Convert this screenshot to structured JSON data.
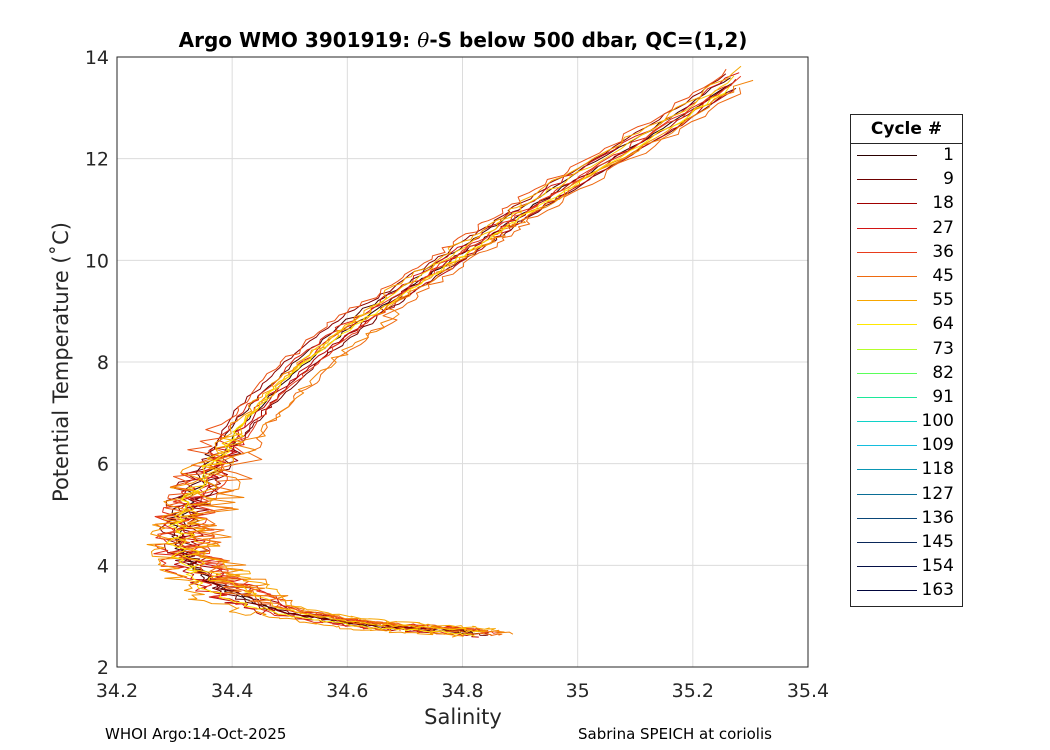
{
  "chart_data": {
    "type": "line",
    "title_parts": [
      "Argo WMO 3901919: ",
      "θ",
      "-S below 500 dbar,  QC=(1,2)"
    ],
    "xlabel": "Salinity",
    "ylabel": "Potential Temperature (˚C)",
    "xlim": [
      34.2,
      35.4
    ],
    "ylim": [
      2,
      14
    ],
    "x_ticks": [
      "34.2",
      "34.4",
      "34.6",
      "34.8",
      "35",
      "35.2",
      "35.4"
    ],
    "y_ticks": [
      "2",
      "4",
      "6",
      "8",
      "10",
      "12",
      "14"
    ],
    "grid": true,
    "legend_placement": "outside-right",
    "legend": {
      "title": "Cycle #",
      "entries": [
        {
          "label": "1",
          "color": "#2a0000"
        },
        {
          "label": "9",
          "color": "#6e0000"
        },
        {
          "label": "18",
          "color": "#a00000"
        },
        {
          "label": "27",
          "color": "#d21414"
        },
        {
          "label": "36",
          "color": "#e83c1c"
        },
        {
          "label": "45",
          "color": "#ee6a10"
        },
        {
          "label": "55",
          "color": "#f7a600"
        },
        {
          "label": "64",
          "color": "#ffe800"
        },
        {
          "label": "73",
          "color": "#b4ff2a"
        },
        {
          "label": "82",
          "color": "#5aff5a"
        },
        {
          "label": "91",
          "color": "#1ce89a"
        },
        {
          "label": "100",
          "color": "#10d2c8"
        },
        {
          "label": "109",
          "color": "#14bede"
        },
        {
          "label": "118",
          "color": "#0a96b4"
        },
        {
          "label": "127",
          "color": "#0a6e96"
        },
        {
          "label": "136",
          "color": "#0a4678"
        },
        {
          "label": "145",
          "color": "#0a285a"
        },
        {
          "label": "154",
          "color": "#050f46"
        },
        {
          "label": "163",
          "color": "#00053c"
        }
      ]
    },
    "base_profile": {
      "x": [
        35.27,
        35.15,
        35.0,
        34.9,
        34.85,
        34.78,
        34.7,
        34.62,
        34.55,
        34.48,
        34.42,
        34.37,
        34.33,
        34.31,
        34.31,
        34.33,
        34.37,
        34.43,
        34.5,
        34.58,
        34.65,
        34.72,
        34.79,
        34.83
      ],
      "y": [
        13.5,
        12.6,
        11.6,
        10.9,
        10.5,
        10.0,
        9.4,
        8.8,
        8.2,
        7.5,
        6.8,
        6.0,
        5.3,
        4.8,
        4.4,
        4.0,
        3.6,
        3.3,
        3.05,
        2.9,
        2.8,
        2.75,
        2.7,
        2.65
      ]
    },
    "profiles": [
      {
        "color": "#2a0000",
        "dx": 0.0,
        "dy": 0.0,
        "wiggle": 0.01
      },
      {
        "color": "#4a0000",
        "dx": -0.01,
        "dy": 0.1,
        "wiggle": 0.012
      },
      {
        "color": "#6e0000",
        "dx": 0.012,
        "dy": -0.1,
        "wiggle": 0.014
      },
      {
        "color": "#8a0000",
        "dx": -0.02,
        "dy": 0.15,
        "wiggle": 0.016
      },
      {
        "color": "#a00000",
        "dx": 0.02,
        "dy": 0.05,
        "wiggle": 0.02
      },
      {
        "color": "#b80a0a",
        "dx": -0.005,
        "dy": -0.15,
        "wiggle": 0.018
      },
      {
        "color": "#d21414",
        "dx": 0.015,
        "dy": 0.2,
        "wiggle": 0.022
      },
      {
        "color": "#e02a14",
        "dx": -0.025,
        "dy": -0.05,
        "wiggle": 0.025
      },
      {
        "color": "#e83c1c",
        "dx": 0.03,
        "dy": 0.1,
        "wiggle": 0.028
      },
      {
        "color": "#ec5214",
        "dx": -0.015,
        "dy": 0.25,
        "wiggle": 0.03
      },
      {
        "color": "#ee6a10",
        "dx": 0.04,
        "dy": -0.1,
        "wiggle": 0.035
      },
      {
        "color": "#f28208",
        "dx": 0.05,
        "dy": 0.05,
        "wiggle": 0.04
      },
      {
        "color": "#f59400",
        "dx": -0.03,
        "dy": -0.2,
        "wiggle": 0.03
      },
      {
        "color": "#f7a600",
        "dx": 0.025,
        "dy": 0.3,
        "wiggle": 0.025
      },
      {
        "color": "#fbc800",
        "dx": 0.005,
        "dy": 0.12,
        "wiggle": 0.02
      },
      {
        "color": "#ffe800",
        "dx": -0.008,
        "dy": -0.08,
        "wiggle": 0.015
      }
    ]
  },
  "footer": {
    "left": "WHOI Argo:14-Oct-2025",
    "right": "Sabrina SPEICH at coriolis"
  }
}
